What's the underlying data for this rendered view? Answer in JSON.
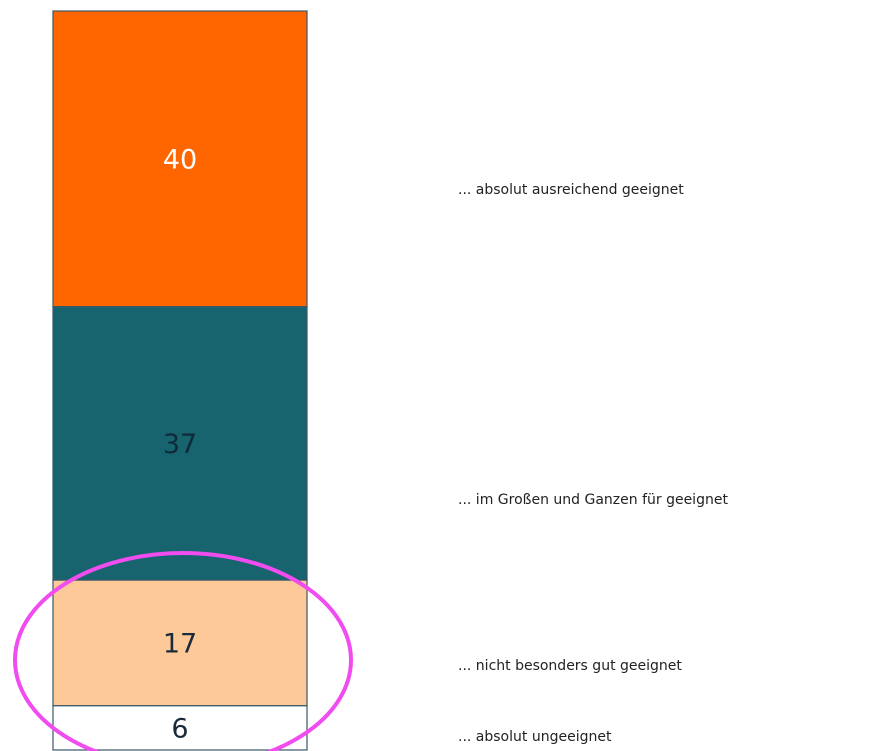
{
  "chart_data": {
    "type": "bar",
    "stacked": true,
    "ylim": [
      0,
      100
    ],
    "series": [
      {
        "name": "... absolut ungeeignet",
        "color": "#ffffff",
        "label_color": "#1a2a3a",
        "values": [
          6
        ]
      },
      {
        "name": "... nicht besonders gut geeignet",
        "color": "#fdc998",
        "label_color": "#1a2a3a",
        "values": [
          17
        ]
      },
      {
        "name": "... im Großen und Ganzen für geeignet",
        "color": "#17646e",
        "label_color": "#0f2a3a",
        "values": [
          37
        ]
      },
      {
        "name": "... absolut ausreichend geeignet",
        "color": "#ff6600",
        "label_color": "#ffffff",
        "values": [
          40
        ]
      }
    ]
  }
}
